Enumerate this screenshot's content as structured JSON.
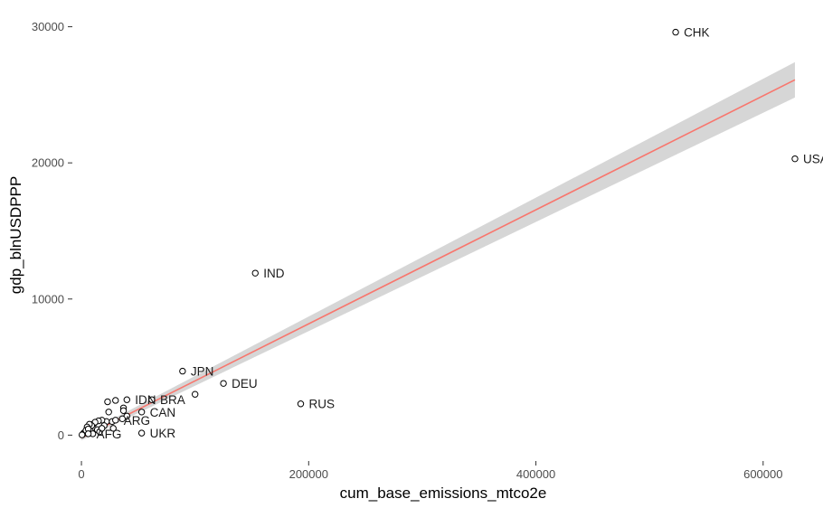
{
  "chart_data": {
    "type": "scatter",
    "xlabel": "cum_base_emissions_mtco2e",
    "ylabel": "gdp_blnUSDPPP",
    "xlim": [
      -8000,
      632000
    ],
    "ylim": [
      -1900,
      31300
    ],
    "x_ticks": [
      0,
      200000,
      400000,
      600000
    ],
    "y_ticks": [
      0,
      10000,
      20000,
      30000
    ],
    "x_tick_labels": [
      "0",
      "200000",
      "400000",
      "600000"
    ],
    "y_tick_labels": [
      "0",
      "10000",
      "20000",
      "30000"
    ],
    "grid": false,
    "legend": "none",
    "labeled_points": [
      {
        "label": "CHK",
        "x": 523000,
        "y": 29600
      },
      {
        "label": "USA",
        "x": 628000,
        "y": 20300
      },
      {
        "label": "IND",
        "x": 153000,
        "y": 11900
      },
      {
        "label": "JPN",
        "x": 89000,
        "y": 4700
      },
      {
        "label": "DEU",
        "x": 125000,
        "y": 3800
      },
      {
        "label": "RUS",
        "x": 193000,
        "y": 2300
      },
      {
        "label": "IDN",
        "x": 40000,
        "y": 2600
      },
      {
        "label": "BRA",
        "x": 62000,
        "y": 2600
      },
      {
        "label": "CAN",
        "x": 53000,
        "y": 1700
      },
      {
        "label": "ARG",
        "x": 30000,
        "y": 1100
      },
      {
        "label": "UKR",
        "x": 53000,
        "y": 150
      },
      {
        "label": "AFG",
        "x": 6000,
        "y": 100
      }
    ],
    "other_points": [
      {
        "x": 23000,
        "y": 2450
      },
      {
        "x": 30000,
        "y": 2550
      },
      {
        "x": 37000,
        "y": 2000
      },
      {
        "x": 37000,
        "y": 1800
      },
      {
        "x": 100000,
        "y": 3000
      },
      {
        "x": 24000,
        "y": 1700
      },
      {
        "x": 40000,
        "y": 1400
      },
      {
        "x": 36000,
        "y": 1200
      },
      {
        "x": 27000,
        "y": 1000
      },
      {
        "x": 22000,
        "y": 1000
      },
      {
        "x": 18000,
        "y": 1100
      },
      {
        "x": 15000,
        "y": 1050
      },
      {
        "x": 11000,
        "y": 850
      },
      {
        "x": 12000,
        "y": 950
      },
      {
        "x": 9000,
        "y": 700
      },
      {
        "x": 7000,
        "y": 800
      },
      {
        "x": 5000,
        "y": 600
      },
      {
        "x": 20000,
        "y": 700
      },
      {
        "x": 28000,
        "y": 500
      },
      {
        "x": 14000,
        "y": 400
      },
      {
        "x": 3000,
        "y": 200
      },
      {
        "x": 2000,
        "y": 150
      },
      {
        "x": 1000,
        "y": 50
      },
      {
        "x": 500,
        "y": 20
      },
      {
        "x": 4000,
        "y": 350
      },
      {
        "x": 8000,
        "y": 300
      },
      {
        "x": 16000,
        "y": 250
      },
      {
        "x": 10000,
        "y": 100
      },
      {
        "x": 6000,
        "y": 450
      },
      {
        "x": 18000,
        "y": 500
      }
    ],
    "fit": {
      "method": "linear",
      "color": "#f8766d",
      "band_color": "#d4d4d4",
      "x_range": [
        0,
        628000
      ],
      "y_range": [
        -200,
        26100
      ],
      "ci_halfwidth_start": 180,
      "ci_halfwidth_end": 1300
    },
    "point_style": {
      "fill": "#ffffff",
      "stroke": "#000000"
    }
  }
}
